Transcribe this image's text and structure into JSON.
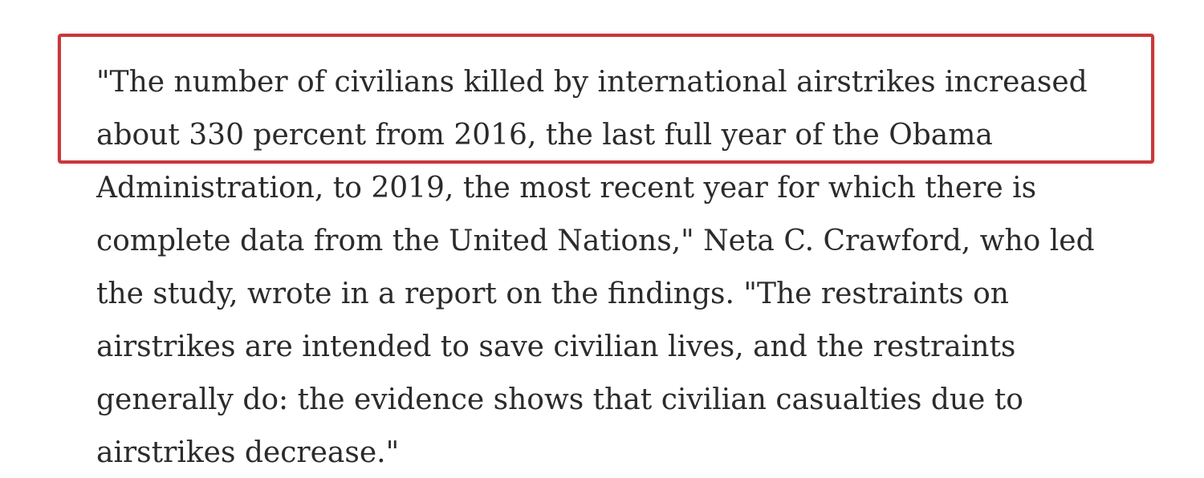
{
  "article": {
    "lines": [
      "\"The number of civilians killed by international airstrikes increased",
      "about 330 percent from 2016, the last full year of the Obama",
      "Administration, to 2019, the most recent year for which there is",
      "complete data from the United Nations,\" Neta C. Crawford, who led",
      "the study, wrote in a report on the findings. \"The restraints on",
      "airstrikes are intended to save civilian lives, and the restraints",
      "generally do: the evidence shows that civilian casualties due to",
      "airstrikes decrease.\""
    ]
  },
  "colors": {
    "text": "#2b2b2b",
    "highlight_border": "#c8373a",
    "background": "#ffffff"
  }
}
